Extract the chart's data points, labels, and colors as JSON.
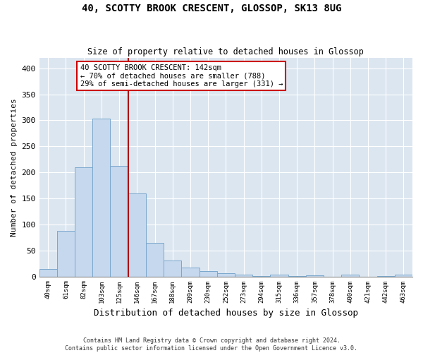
{
  "title1": "40, SCOTTY BROOK CRESCENT, GLOSSOP, SK13 8UG",
  "title2": "Size of property relative to detached houses in Glossop",
  "xlabel": "Distribution of detached houses by size in Glossop",
  "ylabel": "Number of detached properties",
  "footnote": "Contains HM Land Registry data © Crown copyright and database right 2024.\nContains public sector information licensed under the Open Government Licence v3.0.",
  "bin_labels": [
    "40sqm",
    "61sqm",
    "82sqm",
    "103sqm",
    "125sqm",
    "146sqm",
    "167sqm",
    "188sqm",
    "209sqm",
    "230sqm",
    "252sqm",
    "273sqm",
    "294sqm",
    "315sqm",
    "336sqm",
    "357sqm",
    "378sqm",
    "400sqm",
    "421sqm",
    "442sqm",
    "463sqm"
  ],
  "bar_values": [
    15,
    88,
    210,
    303,
    213,
    160,
    64,
    30,
    17,
    10,
    6,
    4,
    1,
    3,
    1,
    2,
    0,
    3,
    0,
    1,
    3
  ],
  "bar_color": "#c5d8ed",
  "bar_edge_color": "#7aa7cc",
  "bg_color": "#dce6f1",
  "grid_color": "#ffffff",
  "vline_color": "#aa0000",
  "vline_bin_index": 4.5,
  "annotation_title": "40 SCOTTY BROOK CRESCENT: 142sqm",
  "annotation_line1": "← 70% of detached houses are smaller (788)",
  "annotation_line2": "29% of semi-detached houses are larger (331) →",
  "annotation_box_color": "#cc0000",
  "ylim": [
    0,
    420
  ],
  "yticks": [
    0,
    50,
    100,
    150,
    200,
    250,
    300,
    350,
    400
  ]
}
